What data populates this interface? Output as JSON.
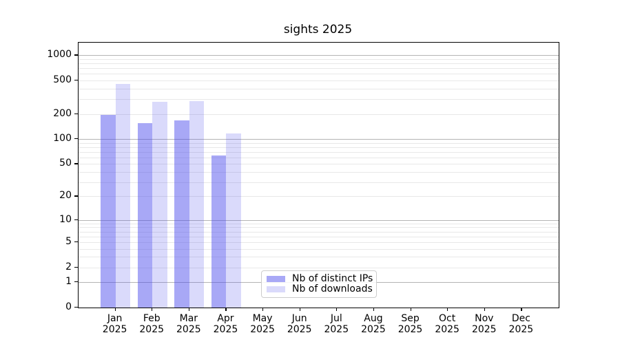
{
  "title": "sights 2025",
  "chart_data": {
    "type": "bar",
    "title": "sights 2025",
    "categories": [
      "Jan",
      "Feb",
      "Mar",
      "Apr",
      "May",
      "Jun",
      "Jul",
      "Aug",
      "Sep",
      "Oct",
      "Nov",
      "Dec"
    ],
    "year_label": "2025",
    "series": [
      {
        "name": "Nb of distinct IPs",
        "color": "rgba(70,70,235,0.47)",
        "values": [
          196,
          156,
          168,
          63,
          0,
          0,
          0,
          0,
          0,
          0,
          0,
          0
        ]
      },
      {
        "name": "Nb of downloads",
        "color": "rgba(70,70,235,0.20)",
        "values": [
          455,
          277,
          285,
          117,
          0,
          0,
          0,
          0,
          0,
          0,
          0,
          0
        ]
      }
    ],
    "yscale": "log1p",
    "yticks": [
      0,
      1,
      2,
      5,
      10,
      20,
      50,
      100,
      200,
      500,
      1000
    ],
    "ylim": [
      0,
      1413
    ],
    "xlabel": "",
    "ylabel": "",
    "grid": "both",
    "legend_position": "lower center",
    "colors": {
      "major_grid": "#b4b4b4",
      "minor_grid": "#e8e8e8",
      "spine": "#000000",
      "legend_border": "#cccccc"
    }
  }
}
